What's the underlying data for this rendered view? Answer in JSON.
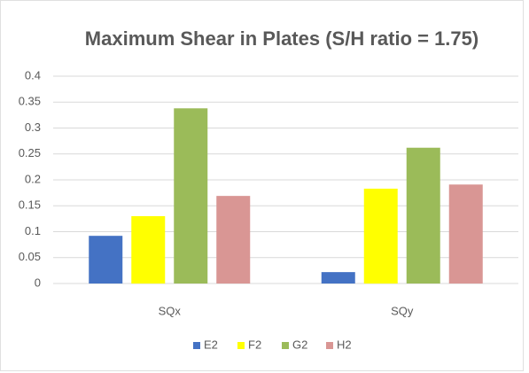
{
  "chart_data": {
    "type": "bar",
    "title": "Maximum Shear in Plates (S/H ratio = 1.75)",
    "categories": [
      "SQx",
      "SQy"
    ],
    "series": [
      {
        "name": "E2",
        "color": "#4472c4",
        "values": [
          0.092,
          0.022
        ]
      },
      {
        "name": "F2",
        "color": "#ffff00",
        "values": [
          0.13,
          0.183
        ]
      },
      {
        "name": "G2",
        "color": "#9bbb59",
        "values": [
          0.338,
          0.262
        ]
      },
      {
        "name": "H2",
        "color": "#d99694",
        "values": [
          0.169,
          0.191
        ]
      }
    ],
    "ylim": [
      0,
      0.4
    ],
    "yticks": [
      0,
      0.05,
      0.1,
      0.15,
      0.2,
      0.25,
      0.3,
      0.35,
      0.4
    ],
    "grid": true,
    "legend": "bottom"
  }
}
